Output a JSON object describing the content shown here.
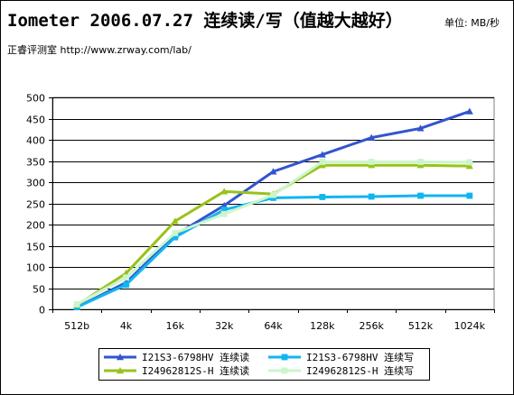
{
  "header": {
    "title": "Iometer 2006.07.27 连续读/写（值越大越好）",
    "unit": "单位: MB/秒",
    "source": "正睿评测室 http://www.zrway.com/lab/"
  },
  "chart_data": {
    "type": "line",
    "categories": [
      "512b",
      "4k",
      "16k",
      "32k",
      "64k",
      "128k",
      "256k",
      "512k",
      "1024k"
    ],
    "ylim": [
      0,
      500
    ],
    "yticks": [
      0,
      50,
      100,
      150,
      200,
      250,
      300,
      350,
      400,
      450,
      500
    ],
    "grid": true,
    "legend_position": "bottom",
    "series": [
      {
        "name": "I21S3-6798HV 连续读",
        "color": "#3355cc",
        "marker": "triangle",
        "values": [
          5,
          63,
          175,
          245,
          325,
          365,
          405,
          427,
          467
        ]
      },
      {
        "name": "I21S3-6798HV 连续写",
        "color": "#11b5f0",
        "marker": "square",
        "values": [
          5,
          58,
          170,
          235,
          263,
          265,
          266,
          268,
          268
        ]
      },
      {
        "name": "I24962812S-H 连续读",
        "color": "#99c21a",
        "marker": "triangle",
        "values": [
          10,
          85,
          208,
          278,
          272,
          340,
          340,
          340,
          338
        ]
      },
      {
        "name": "I24962812S-H 连续写",
        "color": "#ccf5cc",
        "marker": "square",
        "values": [
          12,
          75,
          180,
          225,
          270,
          348,
          348,
          348,
          347
        ]
      }
    ]
  }
}
